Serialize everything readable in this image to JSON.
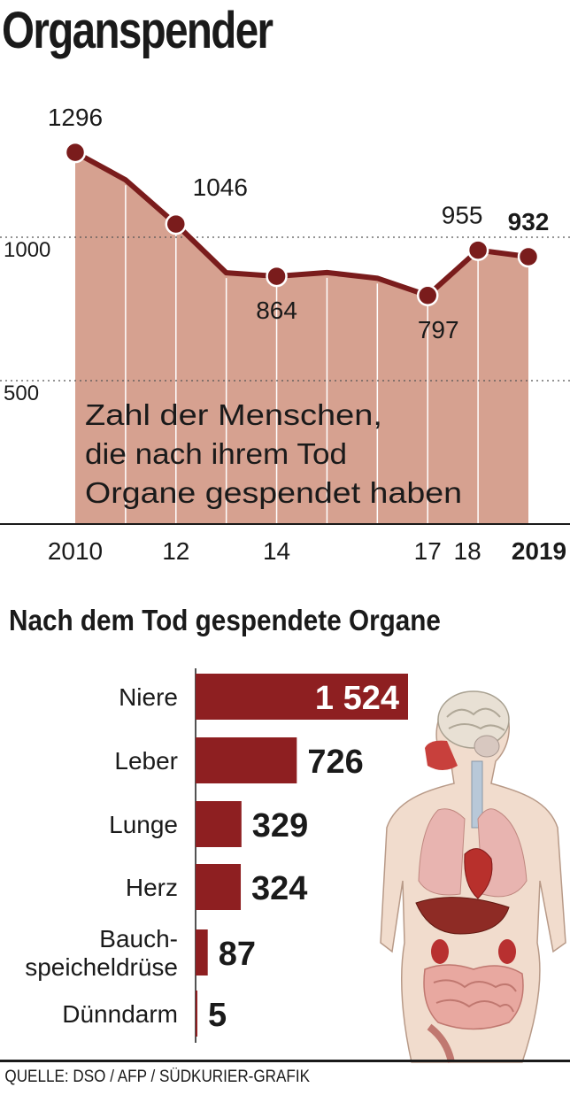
{
  "title": "Organspender",
  "section2_title": "Nach dem Tod gespendete Organe",
  "source": "QUELLE: DSO / AFP / SÜDKURIER-GRAFIK",
  "colors": {
    "area": "#d6a190",
    "line": "#7a1c1c",
    "bar": "#8e1f21",
    "text": "#1a1a1a"
  },
  "chart_data": [
    {
      "type": "area",
      "annotation_lines": [
        "Zahl der Menschen,",
        "die nach ihrem Tod",
        "Organe gespendet haben"
      ],
      "x": [
        2010,
        2011,
        2012,
        2013,
        2014,
        2015,
        2016,
        2017,
        2018,
        2019
      ],
      "x_tick_labels": [
        {
          "x": 2010,
          "label": "2010"
        },
        {
          "x": 2012,
          "label": "12"
        },
        {
          "x": 2014,
          "label": "14"
        },
        {
          "x": 2017,
          "label": "17"
        },
        {
          "x": 2018,
          "label": "18"
        },
        {
          "x": 2019,
          "label": "2019",
          "bold": true
        }
      ],
      "y": [
        1296,
        1200,
        1046,
        876,
        864,
        877,
        857,
        797,
        955,
        932
      ],
      "data_labels": [
        {
          "x": 2010,
          "label": "1296"
        },
        {
          "x": 2012,
          "label": "1046"
        },
        {
          "x": 2014,
          "label": "864"
        },
        {
          "x": 2017,
          "label": "797"
        },
        {
          "x": 2018,
          "label": "955"
        },
        {
          "x": 2019,
          "label": "932",
          "bold": true
        }
      ],
      "y_ticks": [
        500,
        1000
      ],
      "ylim": [
        0,
        1400
      ],
      "grid": "dotted at y ticks"
    },
    {
      "type": "bar",
      "orientation": "horizontal",
      "categories": [
        [
          "Niere"
        ],
        [
          "Leber"
        ],
        [
          "Lunge"
        ],
        [
          "Herz"
        ],
        [
          "Bauch-",
          "speicheldrüse"
        ],
        [
          "Dünndarm"
        ]
      ],
      "values": [
        1524,
        726,
        329,
        324,
        87,
        5
      ],
      "value_labels": [
        "1 524",
        "726",
        "329",
        "324",
        "87",
        "5"
      ]
    }
  ]
}
